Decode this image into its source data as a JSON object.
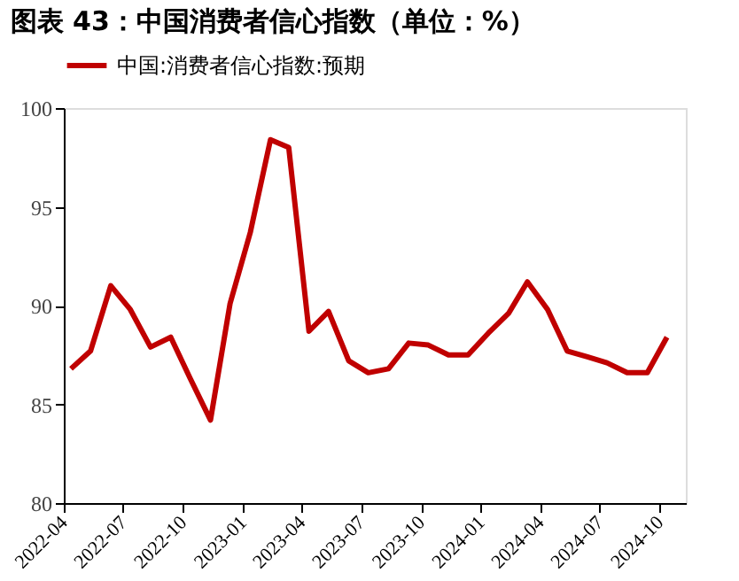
{
  "chart_data": {
    "type": "line",
    "title": "图表 43：中国消费者信心指数（单位：%）",
    "x": [
      "2022-04-12",
      "2022-05-12",
      "2022-06-12",
      "2022-07-12",
      "2022-08-12",
      "2022-09-12",
      "2022-10-12",
      "2022-11-12",
      "2022-12-12",
      "2023-01-12",
      "2023-02-12",
      "2023-03-12",
      "2023-04-12",
      "2023-05-12",
      "2023-06-12",
      "2023-07-12",
      "2023-08-12",
      "2023-09-12",
      "2023-10-12",
      "2023-11-12",
      "2023-12-12",
      "2024-01-12",
      "2024-02-12",
      "2024-03-12",
      "2024-04-12",
      "2024-05-12",
      "2024-06-12",
      "2024-07-12",
      "2024-08-12",
      "2024-09-12",
      "2024-10-12"
    ],
    "series": [
      {
        "name": "中国:消费者信心指数:预期",
        "color": "#c00000",
        "values": [
          86.8,
          87.7,
          91.0,
          89.8,
          87.9,
          88.4,
          86.3,
          84.2,
          90.1,
          93.7,
          98.4,
          98.0,
          88.7,
          89.7,
          87.2,
          86.6,
          86.8,
          88.1,
          88.0,
          87.5,
          87.5,
          88.6,
          89.6,
          91.2,
          89.8,
          87.7,
          87.4,
          87.1,
          86.6,
          86.6,
          88.4
        ]
      }
    ],
    "xlim": [
      "2022-04-01",
      "2024-11-10"
    ],
    "xticks": [
      {
        "value": "2022-04-01",
        "label": "2022-04"
      },
      {
        "value": "2022-07-01",
        "label": "2022-07"
      },
      {
        "value": "2022-10-01",
        "label": "2022-10"
      },
      {
        "value": "2023-01-01",
        "label": "2023-01"
      },
      {
        "value": "2023-04-01",
        "label": "2023-04"
      },
      {
        "value": "2023-07-01",
        "label": "2023-07"
      },
      {
        "value": "2023-10-01",
        "label": "2023-10"
      },
      {
        "value": "2024-01-01",
        "label": "2024-01"
      },
      {
        "value": "2024-04-01",
        "label": "2024-04"
      },
      {
        "value": "2024-07-01",
        "label": "2024-07"
      },
      {
        "value": "2024-10-01",
        "label": "2024-10"
      }
    ],
    "ylim": [
      80,
      100
    ],
    "yticks": [
      80,
      85,
      90,
      95,
      100
    ],
    "grid": false,
    "legend": "top",
    "marker": "none",
    "line_style": "solid"
  }
}
